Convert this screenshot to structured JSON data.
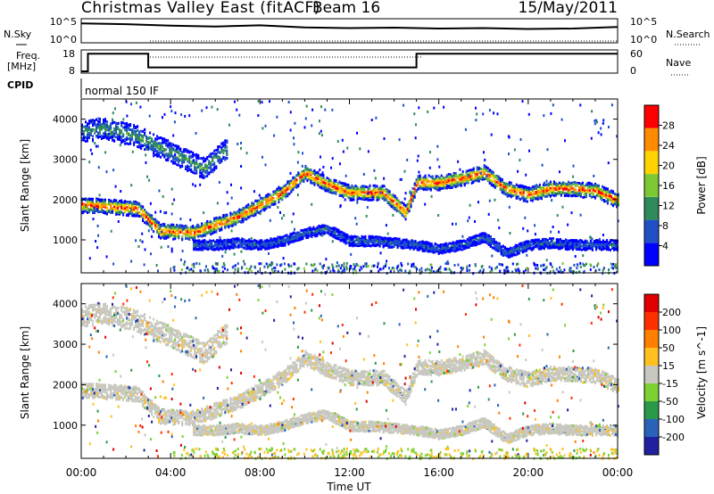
{
  "title": {
    "station": "Christmas Valley East (fitACF)",
    "beam": "Beam 16",
    "date": "15/May/2011"
  },
  "header_panels": {
    "nsky_label": "N.Sky",
    "nsky_ticks": [
      "10^5",
      "10^0"
    ],
    "nsearch_label": "N.Search",
    "nsearch_ticks": [
      "10^5",
      "10^0"
    ],
    "freq_label_1": "Freq.",
    "freq_label_2": "[MHz]",
    "freq_ticks": [
      "18",
      "8"
    ],
    "nave_label": "Nave",
    "nave_ticks": [
      "60",
      "0"
    ],
    "cpid_label": "CPID",
    "cpid_value": "normal 150 IF"
  },
  "colorbars": {
    "power": {
      "label": "Power [dB]",
      "ticks": [
        "28",
        "24",
        "20",
        "16",
        "12",
        "8",
        "4"
      ],
      "colors": [
        "#0000ff",
        "#1f50c8",
        "#2e8a5a",
        "#7cc832",
        "#ffd200",
        "#ff8c00",
        "#ff0000"
      ]
    },
    "velocity": {
      "label": "Velocity [m s^-1]",
      "ticks": [
        "200",
        "100",
        "50",
        "15",
        "-15",
        "-50",
        "-100",
        "-200"
      ],
      "colors": [
        "#2020a0",
        "#2a62b8",
        "#2a9a4a",
        "#7cd232",
        "#c8c8c0",
        "#ffc020",
        "#ff8000",
        "#ff3000",
        "#e00000"
      ]
    }
  },
  "chart_data": [
    {
      "type": "line",
      "panel": "N.Sky",
      "x_unit": "hours UT",
      "x": [
        0,
        2,
        4,
        6,
        8,
        10,
        12,
        14,
        16,
        18,
        20,
        22,
        24
      ],
      "y": [
        30000,
        20000,
        8000,
        5000,
        10000,
        3000,
        2000,
        2500,
        1500,
        2000,
        1200,
        1500,
        4000
      ],
      "ylog": true,
      "ylim": [
        1,
        100000
      ]
    },
    {
      "type": "line",
      "panel": "Freq.",
      "x": [
        0,
        0.3,
        0.3,
        3,
        3,
        15,
        15,
        24
      ],
      "y": [
        8,
        8,
        17,
        17,
        10,
        10,
        17,
        17
      ],
      "ylim": [
        8,
        18
      ],
      "y2_label": "Nave",
      "y2lim": [
        0,
        60
      ]
    },
    {
      "type": "heatmap",
      "title": "Power [dB]",
      "xlabel": "",
      "ylabel": "Slant Range [km]",
      "xlim": [
        0,
        24
      ],
      "ylim": [
        180,
        4500
      ],
      "x_ticks": [
        "00:00",
        "04:00",
        "08:00",
        "12:00",
        "16:00",
        "20:00",
        "00:00"
      ],
      "y_ticks": [
        1000,
        2000,
        3000,
        4000
      ],
      "zlim": [
        0,
        30
      ],
      "bands": [
        {
          "x": [
            0,
            2.5,
            3.5,
            5,
            7,
            9,
            10,
            11,
            12,
            13.5,
            14.5,
            15,
            16,
            17,
            18,
            19,
            20,
            21,
            22,
            23,
            24
          ],
          "y": [
            1900,
            1800,
            1250,
            1200,
            1600,
            2200,
            2700,
            2400,
            2200,
            2200,
            1700,
            2450,
            2450,
            2550,
            2700,
            2300,
            2150,
            2300,
            2300,
            2250,
            2000
          ],
          "peak_db": 28
        },
        {
          "x": [
            5,
            6,
            7,
            8,
            9,
            10,
            11,
            12,
            13,
            14,
            15,
            16,
            17,
            18,
            19,
            20,
            21,
            22,
            23,
            24
          ],
          "y": [
            900,
            900,
            950,
            900,
            1000,
            1200,
            1300,
            1000,
            1000,
            950,
            900,
            800,
            900,
            1100,
            700,
            900,
            950,
            900,
            900,
            900
          ],
          "peak_db": 8
        },
        {
          "x": [
            0,
            1,
            2.5,
            5.5,
            6.5
          ],
          "y": [
            3700,
            3800,
            3600,
            2800,
            3300
          ],
          "peak_db": 12
        }
      ]
    },
    {
      "type": "heatmap",
      "title": "Velocity [m s^-1]",
      "xlabel": "Time UT",
      "ylabel": "Slant Range [km]",
      "xlim": [
        0,
        24
      ],
      "ylim": [
        180,
        4500
      ],
      "x_ticks": [
        "00:00",
        "04:00",
        "08:00",
        "12:00",
        "16:00",
        "20:00",
        "00:00"
      ],
      "y_ticks": [
        1000,
        2000,
        3000,
        4000
      ],
      "zlim": [
        -200,
        200
      ],
      "dominant_velocity": [
        -15,
        15
      ],
      "near_range_velocity": [
        -50,
        50
      ]
    }
  ]
}
